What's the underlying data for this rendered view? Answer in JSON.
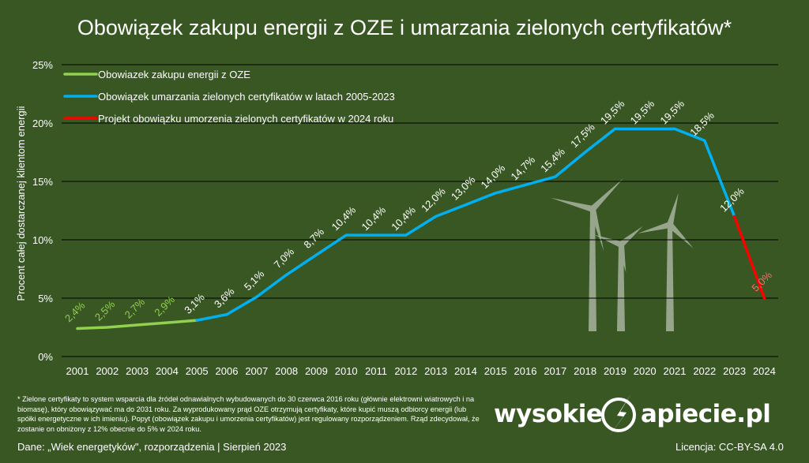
{
  "footnote": "* Zielone certyfikaty to system wsparcia dla źródeł odnawialnych wybudowanych do 30 czerwca 2016 roku (głównie elektrowni wiatrowych i na biomasę), który obowiązywać ma do 2031 roku. Za wyprodukowany prąd OZE otrzymują certyfikaty, które kupić muszą odbiorcy energii (lub spółki energetyczne w ich imieniu). Popyt (obowiązek zakupu i umorzenia certyfikatów) jest regulowany rozporządzeniem. Rząd zdecydował, że zostanie on obniżony z 12% obecnie do 5% w 2024 roku.",
  "source": "Dane: „Wiek energetyków\", rozporządzenia  |  Sierpień 2023",
  "license": "Licencja: CC-BY-SA 4.0",
  "brand": {
    "left": "wysokie",
    "right": "apiecie.pl"
  },
  "colors": {
    "background": "#385723",
    "oze": "#92d050",
    "certificates": "#00b0f0",
    "project": "#ff0000",
    "project_label": "#ff6b6b",
    "turbine": "#a9b3a0"
  },
  "chart_data": {
    "type": "line",
    "title": "Obowiązek zakupu energii z OZE i umarzania zielonych certyfikatów*",
    "ylabel": "Procent całej dostarczanej klientom energii",
    "xlabel": "",
    "ylim": [
      0,
      25
    ],
    "yticks": [
      "0%",
      "5%",
      "10%",
      "15%",
      "20%",
      "25%"
    ],
    "categories": [
      "2001",
      "2002",
      "2003",
      "2004",
      "2005",
      "2006",
      "2007",
      "2008",
      "2009",
      "2010",
      "2011",
      "2012",
      "2013",
      "2014",
      "2015",
      "2016",
      "2017",
      "2018",
      "2019",
      "2020",
      "2021",
      "2022",
      "2023",
      "2024"
    ],
    "grid": true,
    "legend_position": "top-left",
    "series": [
      {
        "name": "Obowiazek zakupu energii z OZE",
        "color": "#92d050",
        "points": [
          {
            "x": "2001",
            "y": 2.4,
            "label": "2,4%"
          },
          {
            "x": "2002",
            "y": 2.5,
            "label": "2,5%"
          },
          {
            "x": "2003",
            "y": 2.7,
            "label": "2,7%"
          },
          {
            "x": "2004",
            "y": 2.9,
            "label": "2,9%"
          },
          {
            "x": "2005",
            "y": 3.1,
            "label": ""
          }
        ]
      },
      {
        "name": "Obowiązek umarzania zielonych certyfikatów w latach 2005-2023",
        "color": "#00b0f0",
        "points": [
          {
            "x": "2005",
            "y": 3.1,
            "label": "3,1%"
          },
          {
            "x": "2006",
            "y": 3.6,
            "label": "3,6%"
          },
          {
            "x": "2007",
            "y": 5.1,
            "label": "5,1%"
          },
          {
            "x": "2008",
            "y": 7.0,
            "label": "7,0%"
          },
          {
            "x": "2009",
            "y": 8.7,
            "label": "8,7%"
          },
          {
            "x": "2010",
            "y": 10.4,
            "label": "10,4%"
          },
          {
            "x": "2011",
            "y": 10.4,
            "label": "10,4%"
          },
          {
            "x": "2012",
            "y": 10.4,
            "label": "10,4%"
          },
          {
            "x": "2013",
            "y": 12.0,
            "label": "12,0%"
          },
          {
            "x": "2014",
            "y": 13.0,
            "label": "13,0%"
          },
          {
            "x": "2015",
            "y": 14.0,
            "label": "14,0%"
          },
          {
            "x": "2016",
            "y": 14.7,
            "label": "14,7%"
          },
          {
            "x": "2017",
            "y": 15.4,
            "label": "15,4%"
          },
          {
            "x": "2018",
            "y": 17.5,
            "label": "17,5%"
          },
          {
            "x": "2019",
            "y": 19.5,
            "label": "19,5%"
          },
          {
            "x": "2020",
            "y": 19.5,
            "label": "19,5%"
          },
          {
            "x": "2021",
            "y": 19.5,
            "label": "19,5%"
          },
          {
            "x": "2022",
            "y": 18.5,
            "label": "18,5%"
          },
          {
            "x": "2023",
            "y": 12.0,
            "label": "12,0%"
          }
        ]
      },
      {
        "name": "Projekt obowiązku umorzenia zielonych certyfikatów w 2024 roku",
        "color": "#ff0000",
        "points": [
          {
            "x": "2023",
            "y": 12.0,
            "label": ""
          },
          {
            "x": "2024",
            "y": 5.0,
            "label": "5,0%"
          }
        ]
      }
    ]
  }
}
